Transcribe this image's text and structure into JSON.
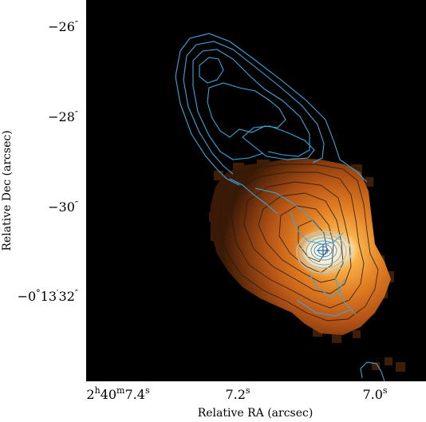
{
  "figure": {
    "xlabel": "Relative RA (arcsec)",
    "ylabel": "Relative Dec (arcsec)",
    "x_ticks": [
      {
        "h": "2",
        "h_unit": "h",
        "m": "40",
        "m_unit": "m",
        "s": "7.4",
        "s_unit": "s"
      },
      {
        "s": "7.2",
        "s_unit": "s"
      },
      {
        "s": "7.0",
        "s_unit": "s"
      }
    ],
    "y_ticks": [
      {
        "text": "−26",
        "mark": "″"
      },
      {
        "text": "−28",
        "mark": "″"
      },
      {
        "text": "−30",
        "mark": "″"
      },
      {
        "deg": "−0",
        "deg_mark": "°",
        "arcmin": "13",
        "arcmin_mark": "′",
        "arcsec": "32",
        "arcsec_mark": "″"
      }
    ],
    "colors": {
      "background": "#000000",
      "radio_contour": "#3aa6dc",
      "optical_contour": "#2a1a0a",
      "core_contour": "#4aa0d6",
      "emission_dark": "#5a2a08",
      "emission_mid": "#c9651a",
      "emission_bright": "#f0a040",
      "core_bright": "#ffffff"
    }
  }
}
